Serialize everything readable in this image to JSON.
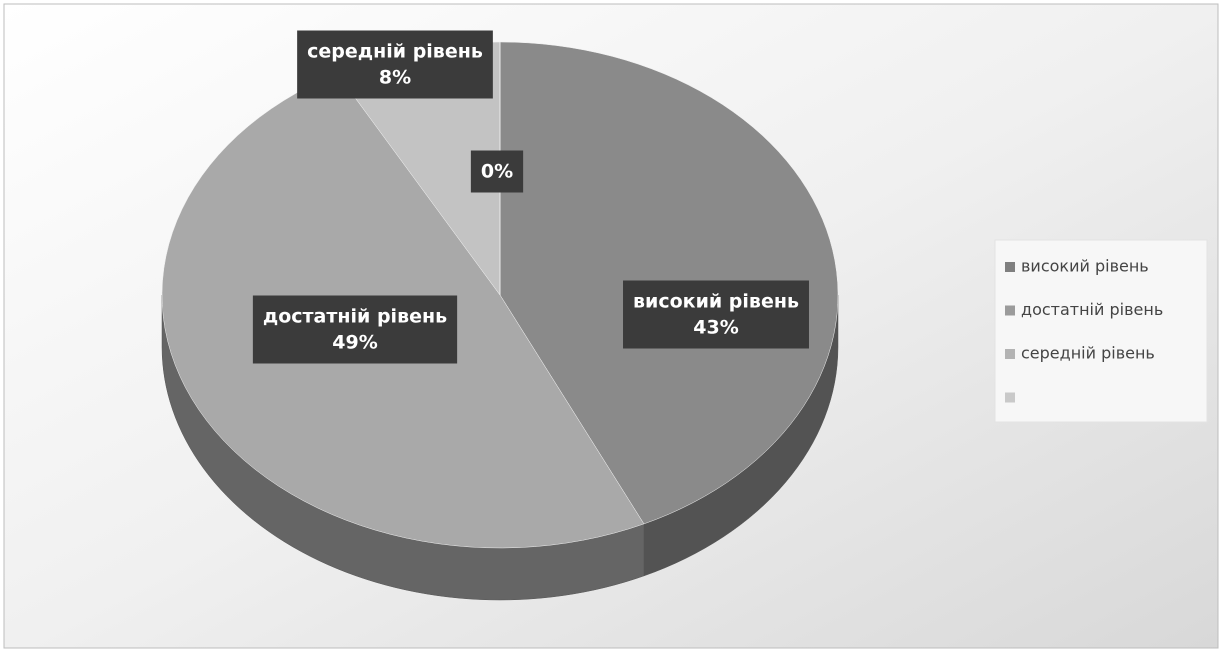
{
  "chart_data": {
    "type": "pie3d",
    "categories": [
      "високий рівень",
      "достатній рівень",
      "середній рівень",
      null
    ],
    "values": [
      43,
      49,
      8,
      0
    ],
    "value_labels": [
      "43%",
      "49%",
      "8%",
      "0%"
    ],
    "colors": [
      "#8a8a8a",
      "#a9a9a9",
      "#c3c3c3",
      "#dadada"
    ],
    "legend": "right"
  }
}
